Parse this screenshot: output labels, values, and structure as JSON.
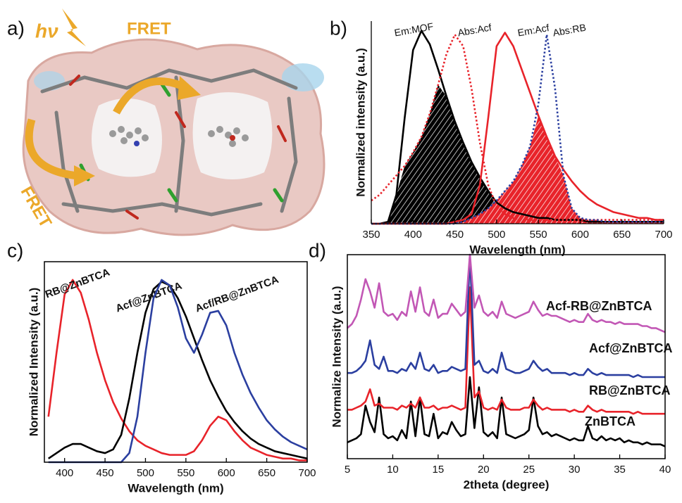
{
  "figure_a": {
    "label": "a)",
    "light": "hν",
    "fret": [
      "FRET",
      "FRET"
    ]
  },
  "chart_data": [
    {
      "type": "line",
      "panel_label": "b)",
      "xlabel": "Wavelength (nm)",
      "ylabel": "Normalized intensity (a.u.)",
      "x": [
        350,
        360,
        370,
        380,
        390,
        400,
        410,
        420,
        430,
        440,
        450,
        460,
        470,
        480,
        490,
        500,
        510,
        520,
        530,
        540,
        550,
        560,
        570,
        580,
        590,
        600,
        610,
        620,
        630,
        640,
        650,
        660,
        670,
        680,
        690,
        700
      ],
      "xlim": [
        350,
        700
      ],
      "xticks": [
        350,
        400,
        450,
        500,
        550,
        600,
        650,
        700
      ],
      "ylim": [
        0,
        1.05
      ],
      "series": [
        {
          "name": "Em:MOF",
          "color": "#000000",
          "style": "solid",
          "values": [
            0,
            0,
            0.01,
            0.15,
            0.55,
            0.9,
            1.0,
            0.93,
            0.8,
            0.66,
            0.53,
            0.42,
            0.32,
            0.24,
            0.17,
            0.11,
            0.08,
            0.06,
            0.05,
            0.04,
            0.03,
            0.03,
            0.02,
            0.02,
            0.02,
            0.02,
            0.01,
            0.01,
            0.01,
            0.01,
            0.01,
            0.01,
            0.01,
            0.01,
            0.01,
            0.01
          ]
        },
        {
          "name": "Abs:Acf",
          "color": "#e8232a",
          "style": "dotted",
          "values": [
            0.12,
            0.15,
            0.2,
            0.25,
            0.3,
            0.37,
            0.45,
            0.57,
            0.72,
            0.88,
            0.98,
            0.92,
            0.7,
            0.42,
            0.2,
            0.09,
            0.05,
            0.03,
            0.02,
            0.02,
            0.02,
            0.02,
            0.02,
            0.02,
            0.02,
            0.02,
            0.02,
            0.02,
            0.02,
            0.02,
            0.02,
            0.02,
            0.02,
            0.02,
            0.02,
            0.02
          ]
        },
        {
          "name": "Em:Acf",
          "color": "#e8232a",
          "style": "solid",
          "values": [
            0,
            0,
            0,
            0,
            0,
            0,
            0,
            0,
            0,
            0,
            0.01,
            0.02,
            0.05,
            0.2,
            0.55,
            0.92,
            0.99,
            0.92,
            0.8,
            0.68,
            0.56,
            0.45,
            0.35,
            0.28,
            0.22,
            0.17,
            0.13,
            0.1,
            0.08,
            0.06,
            0.05,
            0.04,
            0.03,
            0.03,
            0.02,
            0.02
          ]
        },
        {
          "name": "Abs:RB",
          "color": "#2b3fa0",
          "style": "dotted",
          "values": [
            0,
            0,
            0,
            0,
            0,
            0,
            0,
            0,
            0,
            0,
            0,
            0.01,
            0.03,
            0.05,
            0.08,
            0.12,
            0.17,
            0.22,
            0.3,
            0.4,
            0.62,
            0.98,
            0.7,
            0.25,
            0.08,
            0.03,
            0.02,
            0.02,
            0.01,
            0.01,
            0.01,
            0.01,
            0.01,
            0.01,
            0.01,
            0.01
          ]
        }
      ]
    },
    {
      "type": "line",
      "panel_label": "c)",
      "xlabel": "Wavelength (nm)",
      "ylabel": "Normalized Intensity (a.u.)",
      "x": [
        380,
        390,
        400,
        410,
        420,
        430,
        440,
        450,
        460,
        470,
        480,
        490,
        500,
        510,
        520,
        530,
        540,
        550,
        560,
        570,
        580,
        590,
        600,
        610,
        620,
        630,
        640,
        650,
        660,
        670,
        680,
        690,
        700
      ],
      "xlim": [
        375,
        700
      ],
      "xticks": [
        400,
        450,
        500,
        550,
        600,
        650,
        700
      ],
      "ylim": [
        0,
        1.1
      ],
      "series": [
        {
          "name": "RB@ZnBTCA",
          "color": "#e8232a",
          "style": "solid",
          "values": [
            0.25,
            0.6,
            0.92,
            1.0,
            0.93,
            0.78,
            0.6,
            0.45,
            0.33,
            0.24,
            0.17,
            0.12,
            0.09,
            0.07,
            0.05,
            0.04,
            0.04,
            0.04,
            0.06,
            0.12,
            0.2,
            0.25,
            0.23,
            0.17,
            0.12,
            0.08,
            0.06,
            0.04,
            0.03,
            0.02,
            0.02,
            0.01,
            0.01
          ]
        },
        {
          "name": "Acf@ZnBTCA",
          "color": "#000000",
          "style": "solid",
          "values": [
            0.02,
            0.05,
            0.08,
            0.1,
            0.1,
            0.08,
            0.06,
            0.05,
            0.07,
            0.15,
            0.35,
            0.6,
            0.82,
            0.95,
            0.99,
            0.97,
            0.9,
            0.8,
            0.68,
            0.56,
            0.45,
            0.36,
            0.28,
            0.22,
            0.17,
            0.13,
            0.1,
            0.08,
            0.06,
            0.05,
            0.04,
            0.03,
            0.02
          ]
        },
        {
          "name": "Acf/RB@ZnBTCA",
          "color": "#2b3fa0",
          "style": "solid",
          "values": [
            0,
            0,
            0,
            0,
            0,
            0,
            0,
            0,
            0,
            0,
            0.05,
            0.25,
            0.6,
            0.9,
            1.0,
            0.97,
            0.85,
            0.68,
            0.6,
            0.7,
            0.82,
            0.83,
            0.75,
            0.6,
            0.48,
            0.38,
            0.3,
            0.23,
            0.18,
            0.14,
            0.11,
            0.09,
            0.07
          ]
        }
      ]
    },
    {
      "type": "line",
      "panel_label": "d)",
      "xlabel": "2theta (degree)",
      "ylabel": "Normalize Intensity (a.u.)",
      "x": [
        5,
        5.5,
        6,
        6.5,
        7,
        7.5,
        8,
        8.5,
        9,
        9.5,
        10,
        10.5,
        11,
        11.5,
        12,
        12.5,
        13,
        13.5,
        14,
        14.5,
        15,
        15.5,
        16,
        16.5,
        17,
        17.5,
        18,
        18.5,
        19,
        19.5,
        20,
        20.5,
        21,
        21.5,
        22,
        22.5,
        23,
        23.5,
        24,
        24.5,
        25,
        25.5,
        26,
        26.5,
        27,
        27.5,
        28,
        28.5,
        29,
        29.5,
        30,
        30.5,
        31,
        31.5,
        32,
        32.5,
        33,
        33.5,
        34,
        34.5,
        35,
        35.5,
        36,
        36.5,
        37,
        37.5,
        38,
        38.5,
        39,
        39.5,
        40
      ],
      "xlim": [
        5,
        40
      ],
      "xticks": [
        5,
        10,
        15,
        20,
        25,
        30,
        35,
        40
      ],
      "ylim": [
        0,
        100
      ],
      "series": [
        {
          "name": "ZnBTCA",
          "color": "#000000",
          "style": "solid",
          "values": [
            8,
            9,
            10,
            12,
            26,
            18,
            13,
            30,
            12,
            10,
            11,
            9,
            14,
            10,
            28,
            11,
            30,
            12,
            11,
            22,
            10,
            13,
            12,
            18,
            14,
            11,
            12,
            40,
            15,
            35,
            13,
            11,
            13,
            10,
            30,
            12,
            11,
            10,
            11,
            12,
            14,
            30,
            16,
            12,
            13,
            11,
            12,
            11,
            10,
            9,
            10,
            9,
            9,
            16,
            10,
            9,
            11,
            9,
            10,
            9,
            10,
            8,
            9,
            8,
            8,
            7,
            8,
            7,
            7,
            7,
            6
          ]
        },
        {
          "name": "RB@ZnBTCA",
          "color": "#e8232a",
          "style": "solid",
          "values": [
            24,
            24,
            25,
            26,
            28,
            34,
            26,
            27,
            25,
            25,
            25,
            24,
            26,
            25,
            27,
            25,
            30,
            25,
            25,
            26,
            24,
            25,
            25,
            26,
            25,
            24,
            25,
            84,
            30,
            33,
            25,
            24,
            25,
            24,
            29,
            25,
            24,
            24,
            24,
            25,
            25,
            29,
            26,
            24,
            25,
            24,
            24,
            24,
            24,
            23,
            24,
            23,
            23,
            26,
            24,
            23,
            24,
            23,
            23,
            23,
            23,
            23,
            23,
            22,
            23,
            22,
            22,
            22,
            22,
            22,
            22
          ]
        },
        {
          "name": "Acf@ZnBTCA",
          "color": "#2b3fa0",
          "style": "solid",
          "values": [
            42,
            42,
            43,
            45,
            48,
            58,
            46,
            44,
            50,
            43,
            43,
            42,
            44,
            43,
            47,
            44,
            52,
            44,
            43,
            46,
            42,
            43,
            43,
            45,
            44,
            43,
            44,
            100,
            46,
            48,
            43,
            42,
            44,
            42,
            52,
            44,
            43,
            42,
            42,
            43,
            44,
            48,
            45,
            43,
            44,
            42,
            42,
            42,
            42,
            41,
            42,
            41,
            41,
            44,
            42,
            41,
            42,
            41,
            41,
            41,
            41,
            41,
            41,
            40,
            41,
            40,
            40,
            40,
            40,
            40,
            40
          ]
        },
        {
          "name": "Acf-RB@ZnBTCA",
          "color": "#c257b5",
          "style": "solid",
          "values": [
            64,
            66,
            70,
            78,
            88,
            82,
            74,
            86,
            72,
            70,
            71,
            68,
            72,
            70,
            82,
            72,
            84,
            72,
            70,
            78,
            69,
            71,
            71,
            76,
            73,
            70,
            72,
            100,
            74,
            80,
            72,
            70,
            72,
            69,
            77,
            71,
            70,
            69,
            70,
            71,
            72,
            77,
            73,
            70,
            71,
            70,
            70,
            69,
            68,
            67,
            68,
            67,
            67,
            71,
            68,
            67,
            68,
            67,
            67,
            66,
            67,
            66,
            66,
            66,
            66,
            65,
            65,
            64,
            64,
            63,
            62
          ]
        }
      ]
    }
  ]
}
